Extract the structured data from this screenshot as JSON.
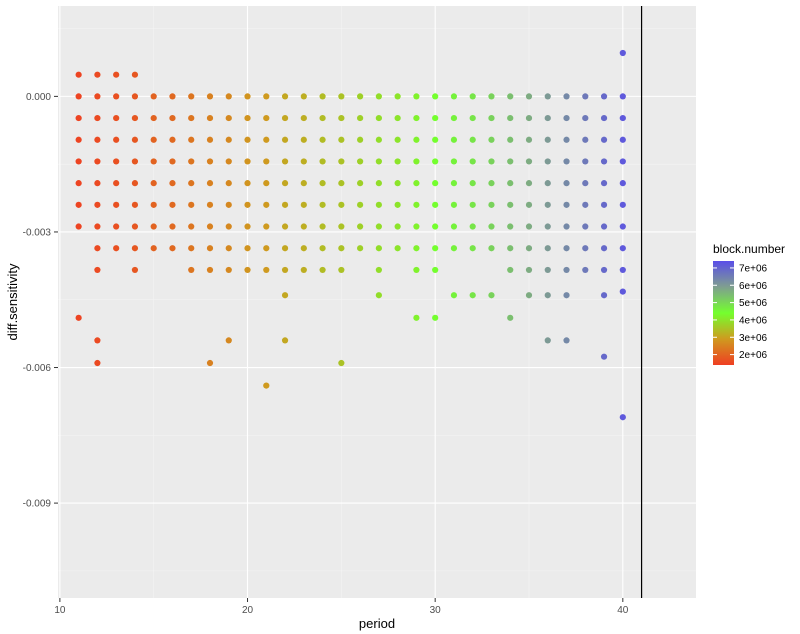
{
  "chart_data": {
    "type": "scatter",
    "title": "",
    "xlabel": "period",
    "ylabel": "diff.sensitivity",
    "xlim": [
      9.9,
      43.9
    ],
    "ylim": [
      -0.0111,
      0.002
    ],
    "x_ticks": [
      10,
      20,
      30,
      40
    ],
    "x_tick_labels": [
      "10",
      "20",
      "30",
      "40"
    ],
    "y_ticks": [
      0.0,
      -0.003,
      -0.006,
      -0.009
    ],
    "y_tick_labels": [
      "0.000",
      "-0.003",
      "-0.006",
      "-0.009"
    ],
    "vline_x": 41,
    "grid": true,
    "legend": {
      "title": "block.number",
      "position": "right",
      "range": [
        1400000,
        7400000
      ],
      "tick_values": [
        7000000,
        6000000,
        5000000,
        4000000,
        3000000,
        2000000
      ],
      "tick_labels": [
        "7e+06",
        "6e+06",
        "5e+06",
        "4e+06",
        "3e+06",
        "2e+06"
      ],
      "colors": {
        "low": "#ef3e22",
        "mid_low": "#cf9a1f",
        "mid": "#74ff2e",
        "mid_high": "#7f9f8f",
        "high": "#5a4ee8"
      }
    },
    "point_color": {
      "low": "#ef3e22",
      "mid": "#74ff2e",
      "high": "#5a4ee8"
    },
    "y_levels": [
      0.00096,
      0.00048,
      0.0,
      -0.00048,
      -0.00096,
      -0.00144,
      -0.00192,
      -0.0024,
      -0.00288,
      -0.00336,
      -0.00384,
      -0.00432,
      -0.0048,
      -0.00528,
      -0.00576,
      -0.0064
    ],
    "series": [
      {
        "x": 11,
        "block": 1500000,
        "y": [
          0.00048,
          0.0,
          -0.00048,
          -0.00096,
          -0.00144,
          -0.00192,
          -0.0024,
          -0.00288,
          -0.0049
        ]
      },
      {
        "x": 12,
        "block": 1600000,
        "y": [
          0.00048,
          0.0,
          -0.00048,
          -0.00096,
          -0.00144,
          -0.00192,
          -0.0024,
          -0.00288,
          -0.00336,
          -0.00384,
          -0.0054,
          -0.0059
        ]
      },
      {
        "x": 13,
        "block": 1700000,
        "y": [
          0.00048,
          0.0,
          -0.00048,
          -0.00096,
          -0.00144,
          -0.00192,
          -0.0024,
          -0.00288,
          -0.00336
        ]
      },
      {
        "x": 14,
        "block": 1800000,
        "y": [
          0.00048,
          0.0,
          -0.00048,
          -0.00096,
          -0.00144,
          -0.00192,
          -0.0024,
          -0.00288,
          -0.00336,
          -0.00384
        ]
      },
      {
        "x": 15,
        "block": 2000000,
        "y": [
          0.0,
          -0.00048,
          -0.00096,
          -0.00144,
          -0.00192,
          -0.0024,
          -0.00288,
          -0.00336
        ]
      },
      {
        "x": 16,
        "block": 2100000,
        "y": [
          0.0,
          -0.00048,
          -0.00096,
          -0.00144,
          -0.00192,
          -0.0024,
          -0.00288,
          -0.00336
        ]
      },
      {
        "x": 17,
        "block": 2300000,
        "y": [
          0.0,
          -0.00048,
          -0.00096,
          -0.00144,
          -0.00192,
          -0.0024,
          -0.00288,
          -0.00336,
          -0.00384
        ]
      },
      {
        "x": 18,
        "block": 2500000,
        "y": [
          0.0,
          -0.00048,
          -0.00096,
          -0.00144,
          -0.00192,
          -0.0024,
          -0.00288,
          -0.00336,
          -0.00384,
          -0.0059
        ]
      },
      {
        "x": 19,
        "block": 2600000,
        "y": [
          0.0,
          -0.00048,
          -0.00096,
          -0.00144,
          -0.00192,
          -0.0024,
          -0.00288,
          -0.00336,
          -0.00384,
          -0.0054
        ]
      },
      {
        "x": 20,
        "block": 2800000,
        "y": [
          0.0,
          -0.00048,
          -0.00096,
          -0.00144,
          -0.00192,
          -0.0024,
          -0.00288,
          -0.00336,
          -0.00384
        ]
      },
      {
        "x": 21,
        "block": 2900000,
        "y": [
          0.0,
          -0.00048,
          -0.00096,
          -0.00144,
          -0.00192,
          -0.0024,
          -0.00288,
          -0.00336,
          -0.00384,
          -0.0064
        ]
      },
      {
        "x": 22,
        "block": 3100000,
        "y": [
          0.0,
          -0.00048,
          -0.00096,
          -0.00144,
          -0.00192,
          -0.0024,
          -0.00288,
          -0.00336,
          -0.00384,
          -0.0044,
          -0.0054
        ]
      },
      {
        "x": 23,
        "block": 3200000,
        "y": [
          0.0,
          -0.00048,
          -0.00096,
          -0.00144,
          -0.00192,
          -0.0024,
          -0.00288,
          -0.00336,
          -0.00384
        ]
      },
      {
        "x": 24,
        "block": 3400000,
        "y": [
          0.0,
          -0.00048,
          -0.00096,
          -0.00144,
          -0.00192,
          -0.0024,
          -0.00288,
          -0.00336,
          -0.00384
        ]
      },
      {
        "x": 25,
        "block": 3500000,
        "y": [
          0.0,
          -0.00048,
          -0.00096,
          -0.00144,
          -0.00192,
          -0.0024,
          -0.00288,
          -0.00336,
          -0.00384,
          -0.0059
        ]
      },
      {
        "x": 26,
        "block": 3700000,
        "y": [
          0.0,
          -0.00048,
          -0.00096,
          -0.00144,
          -0.00192,
          -0.0024,
          -0.00288,
          -0.00336
        ]
      },
      {
        "x": 27,
        "block": 3900000,
        "y": [
          0.0,
          -0.00048,
          -0.00096,
          -0.00144,
          -0.00192,
          -0.0024,
          -0.00288,
          -0.00336,
          -0.00384,
          -0.0044
        ]
      },
      {
        "x": 28,
        "block": 4000000,
        "y": [
          0.0,
          -0.00048,
          -0.00096,
          -0.00144,
          -0.00192,
          -0.0024,
          -0.00288,
          -0.00336
        ]
      },
      {
        "x": 29,
        "block": 4200000,
        "y": [
          0.0,
          -0.00048,
          -0.00096,
          -0.00144,
          -0.00192,
          -0.0024,
          -0.00288,
          -0.00336,
          -0.00384,
          -0.0049
        ]
      },
      {
        "x": 30,
        "block": 4400000,
        "y": [
          0.0,
          -0.00048,
          -0.00096,
          -0.00144,
          -0.00192,
          -0.0024,
          -0.00288,
          -0.00336,
          -0.00384,
          -0.0049
        ]
      },
      {
        "x": 31,
        "block": 4600000,
        "y": [
          0.0,
          -0.00048,
          -0.00096,
          -0.00144,
          -0.00192,
          -0.0024,
          -0.00288,
          -0.00336,
          -0.0044
        ]
      },
      {
        "x": 32,
        "block": 4800000,
        "y": [
          0.0,
          -0.00048,
          -0.00096,
          -0.00144,
          -0.00192,
          -0.0024,
          -0.00288,
          -0.00336,
          -0.0044
        ]
      },
      {
        "x": 33,
        "block": 5100000,
        "y": [
          0.0,
          -0.00048,
          -0.00096,
          -0.00144,
          -0.00192,
          -0.0024,
          -0.00288,
          -0.00336,
          -0.0044
        ]
      },
      {
        "x": 34,
        "block": 5400000,
        "y": [
          0.0,
          -0.00048,
          -0.00096,
          -0.00144,
          -0.00192,
          -0.0024,
          -0.00288,
          -0.00336,
          -0.00384,
          -0.0049
        ]
      },
      {
        "x": 35,
        "block": 5700000,
        "y": [
          0.0,
          -0.00048,
          -0.00096,
          -0.00144,
          -0.00192,
          -0.0024,
          -0.00288,
          -0.00336,
          -0.00384,
          -0.0044
        ]
      },
      {
        "x": 36,
        "block": 6000000,
        "y": [
          0.0,
          -0.00048,
          -0.00096,
          -0.00144,
          -0.00192,
          -0.0024,
          -0.00288,
          -0.00336,
          -0.00384,
          -0.0044,
          -0.0054
        ]
      },
      {
        "x": 37,
        "block": 6300000,
        "y": [
          0.0,
          -0.00048,
          -0.00096,
          -0.00144,
          -0.00192,
          -0.0024,
          -0.00288,
          -0.00336,
          -0.00384,
          -0.0044,
          -0.0054
        ]
      },
      {
        "x": 38,
        "block": 6600000,
        "y": [
          0.0,
          -0.00048,
          -0.00096,
          -0.00144,
          -0.00192,
          -0.0024,
          -0.00288,
          -0.00336,
          -0.00384
        ]
      },
      {
        "x": 39,
        "block": 6900000,
        "y": [
          0.0,
          -0.00048,
          -0.00096,
          -0.00144,
          -0.00192,
          -0.0024,
          -0.00288,
          -0.00336,
          -0.00384,
          -0.0044,
          -0.00576
        ]
      },
      {
        "x": 40,
        "block": 7200000,
        "y": [
          0.00096,
          0.0,
          -0.00048,
          -0.00096,
          -0.00144,
          -0.00192,
          -0.0024,
          -0.00288,
          -0.00336,
          -0.00384,
          -0.00432,
          -0.0071
        ]
      }
    ]
  }
}
